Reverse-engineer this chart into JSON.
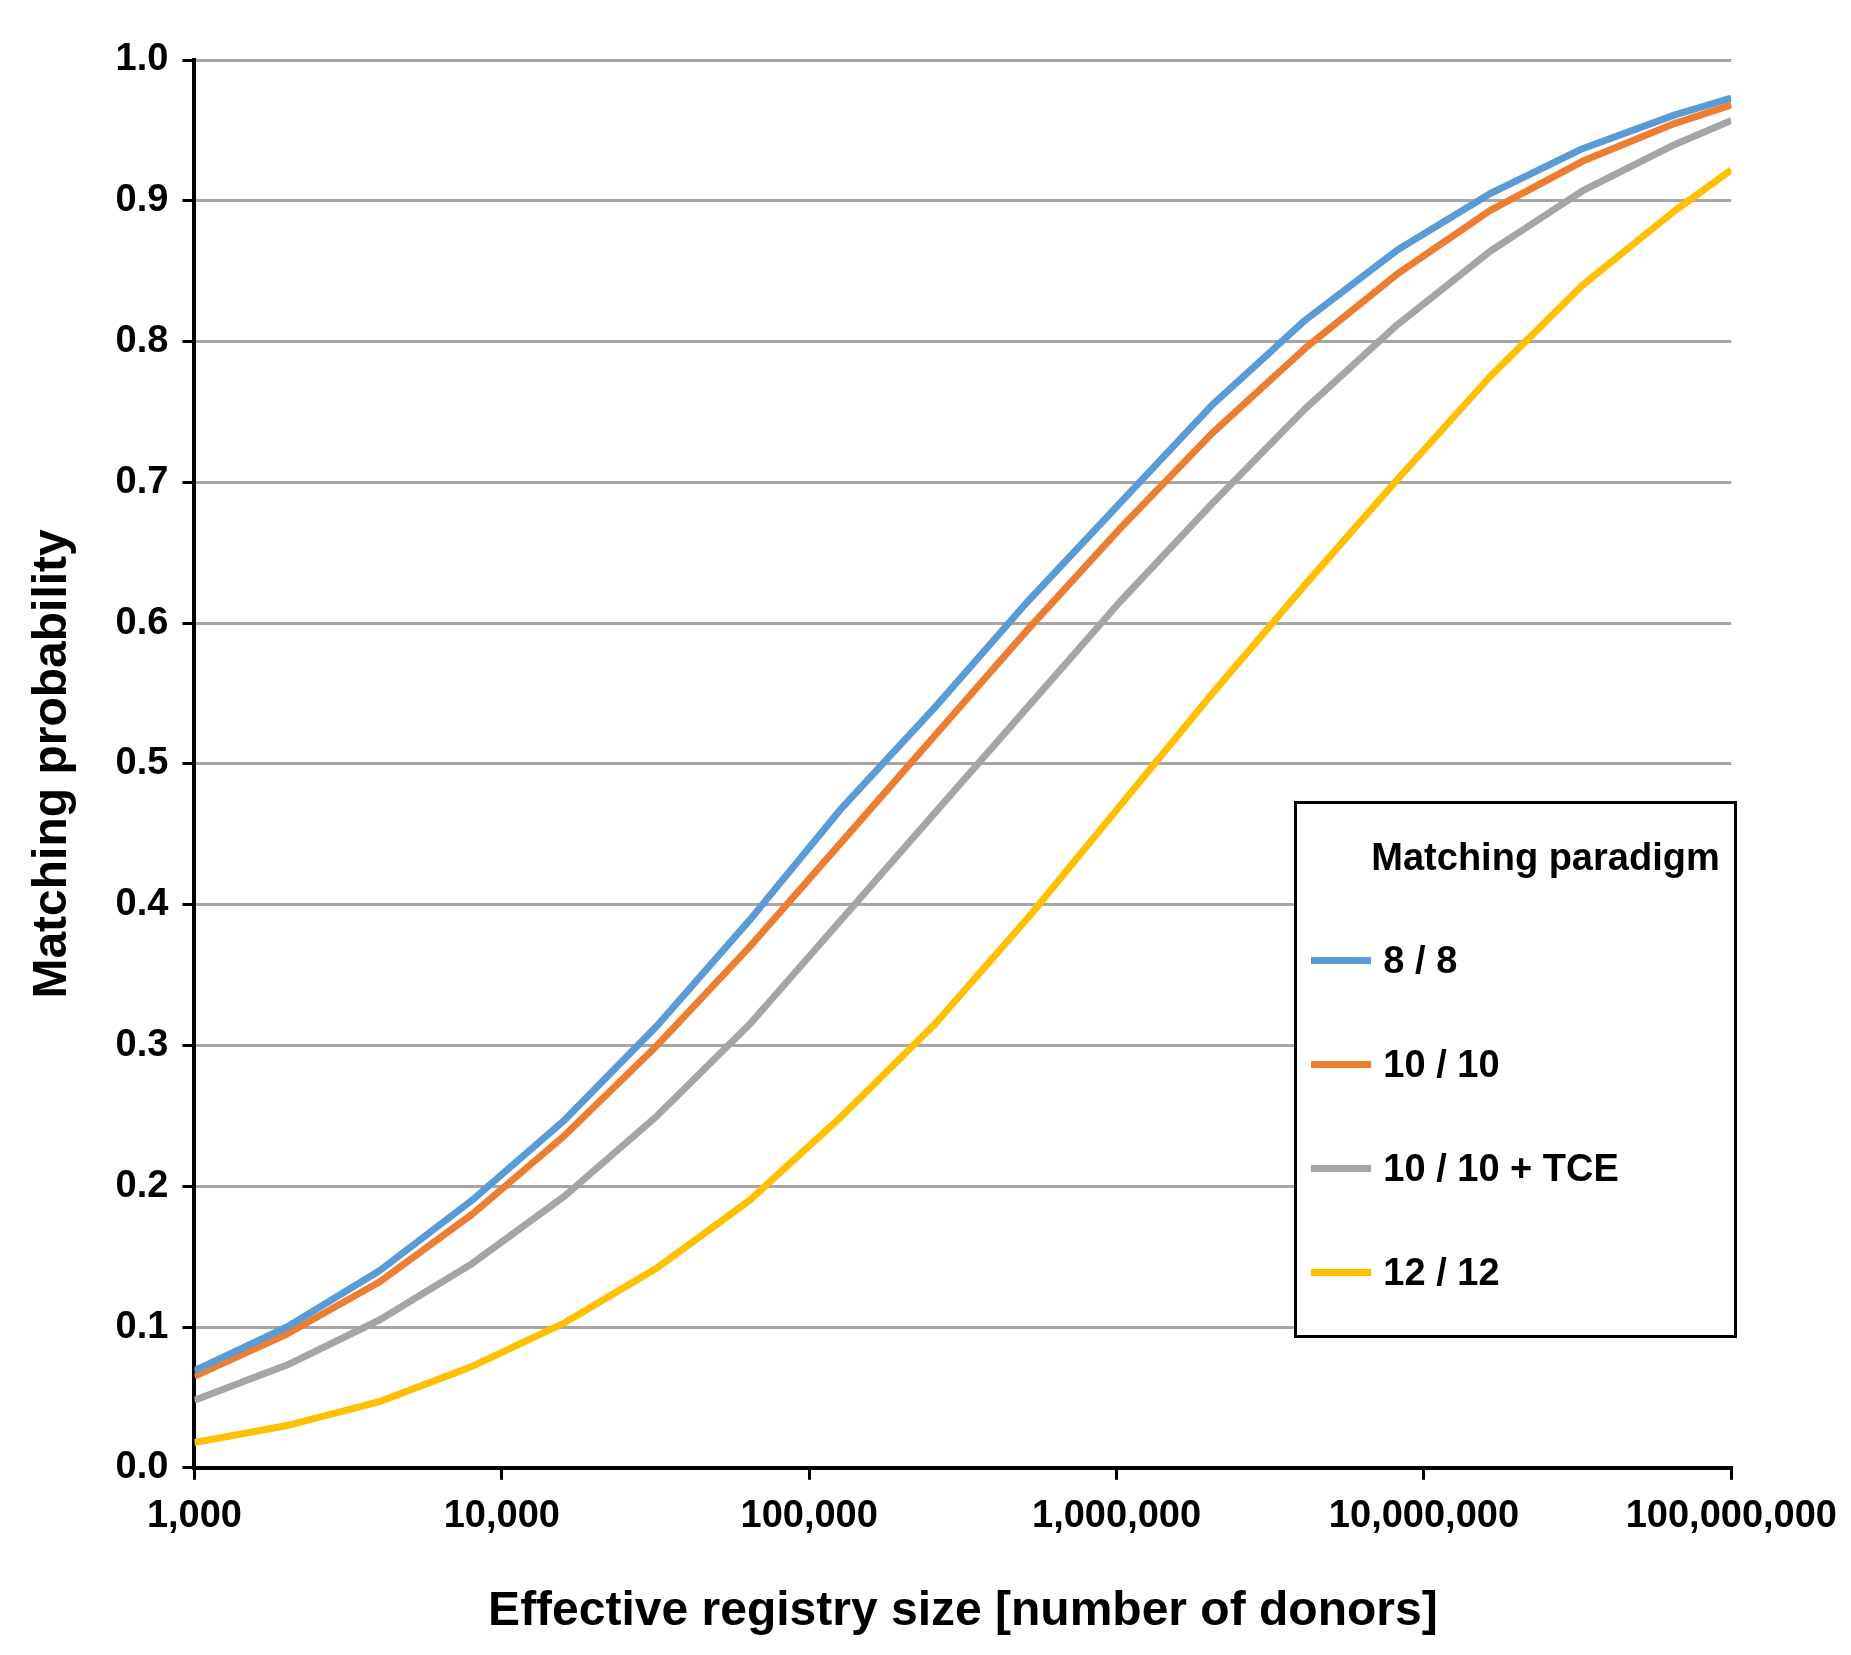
{
  "chart_data": {
    "type": "line",
    "xlabel": "Effective registry size [number of donors]",
    "ylabel": "Matching probability",
    "legend_title": "Matching paradigm",
    "legend": "bottom right",
    "grid": "y",
    "log": "x",
    "marker": "none",
    "line_style": "solid",
    "x": [
      1000,
      2000,
      4000,
      8000,
      16000,
      32000,
      64000,
      128000,
      256000,
      512000,
      1024000,
      2048000,
      4096000,
      8192000,
      16384000,
      32768000,
      65536000,
      100000000
    ],
    "xlim": [
      1000,
      100000000
    ],
    "xticks": [
      {
        "value": 1000,
        "label": "1,000"
      },
      {
        "value": 10000,
        "label": "10,000"
      },
      {
        "value": 100000,
        "label": "100,000"
      },
      {
        "value": 1000000,
        "label": "1,000,000"
      },
      {
        "value": 10000000,
        "label": "10,000,000"
      },
      {
        "value": 100000000,
        "label": "100,000,000"
      }
    ],
    "ylim": [
      0,
      1
    ],
    "yticks": [
      {
        "value": 0,
        "label": "0.0"
      },
      {
        "value": 0.1,
        "label": "0.1"
      },
      {
        "value": 0.2,
        "label": "0.2"
      },
      {
        "value": 0.3,
        "label": "0.3"
      },
      {
        "value": 0.4,
        "label": "0.4"
      },
      {
        "value": 0.5,
        "label": "0.5"
      },
      {
        "value": 0.6,
        "label": "0.6"
      },
      {
        "value": 0.7,
        "label": "0.7"
      },
      {
        "value": 0.8,
        "label": "0.8"
      },
      {
        "value": 0.9,
        "label": "0.9"
      },
      {
        "value": 1,
        "label": "1.0"
      }
    ],
    "series": [
      {
        "name": "8 / 8",
        "color": "#5b9bd5",
        "values": [
          0.069,
          0.1,
          0.14,
          0.19,
          0.247,
          0.314,
          0.389,
          0.469,
          0.54,
          0.615,
          0.685,
          0.755,
          0.815,
          0.865,
          0.905,
          0.937,
          0.961,
          0.973
        ]
      },
      {
        "name": "10 / 10",
        "color": "#ed7d31",
        "values": [
          0.065,
          0.095,
          0.132,
          0.18,
          0.236,
          0.3,
          0.37,
          0.445,
          0.52,
          0.595,
          0.667,
          0.735,
          0.795,
          0.848,
          0.893,
          0.928,
          0.955,
          0.968
        ]
      },
      {
        "name": "10 / 10 + TCE",
        "color": "#a5a5a5",
        "values": [
          0.048,
          0.073,
          0.105,
          0.145,
          0.193,
          0.25,
          0.315,
          0.39,
          0.465,
          0.54,
          0.615,
          0.685,
          0.752,
          0.812,
          0.864,
          0.907,
          0.94,
          0.957
        ]
      },
      {
        "name": "12 / 12",
        "color": "#ffc000",
        "values": [
          0.018,
          0.03,
          0.047,
          0.072,
          0.103,
          0.142,
          0.19,
          0.25,
          0.315,
          0.39,
          0.47,
          0.55,
          0.627,
          0.702,
          0.775,
          0.84,
          0.893,
          0.922
        ]
      }
    ]
  }
}
